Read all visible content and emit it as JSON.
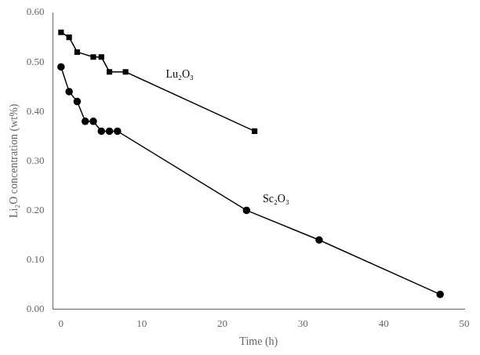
{
  "chart_data": {
    "type": "line",
    "xlabel": "Time (h)",
    "ylabel": "Li₂O concentration (wt%)",
    "series": [
      {
        "x": [
          0,
          1,
          2,
          4,
          5,
          6,
          8,
          24
        ],
        "values": [
          0.56,
          0.55,
          0.52,
          0.51,
          0.51,
          0.48,
          0.48,
          0.36
        ],
        "color": "#000000",
        "marker": "square"
      },
      {
        "x": [
          0,
          1,
          2,
          3,
          4,
          5,
          6,
          7,
          23,
          32,
          47
        ],
        "values": [
          0.49,
          0.44,
          0.42,
          0.38,
          0.38,
          0.36,
          0.36,
          0.36,
          0.2,
          0.14,
          0.03
        ],
        "color": "#000000",
        "marker": "circle"
      }
    ],
    "annotations": [
      {
        "text": "Lu₂O₃",
        "x": 13,
        "y": 0.475
      },
      {
        "text": "Sc₂O₃",
        "x": 25,
        "y": 0.222
      }
    ],
    "xlim": [
      -1,
      50
    ],
    "ylim": [
      0.0,
      0.6
    ],
    "xticks": [
      0,
      10,
      20,
      30,
      40,
      50
    ],
    "yticks": [
      {
        "value": 0.0,
        "label": "0.00"
      },
      {
        "value": 0.1,
        "label": "0.10"
      },
      {
        "value": 0.2,
        "label": "0.20"
      },
      {
        "value": 0.3,
        "label": "0.30"
      },
      {
        "value": 0.4,
        "label": "0.40"
      },
      {
        "value": 0.5,
        "label": "0.50"
      },
      {
        "value": 0.6,
        "label": "0.60"
      }
    ],
    "grid": false
  }
}
